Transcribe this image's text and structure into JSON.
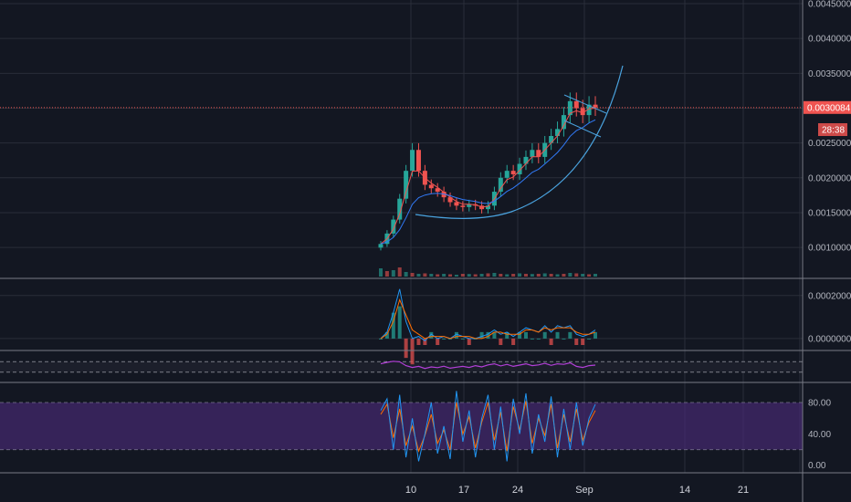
{
  "colors": {
    "background": "#131722",
    "grid": "#2a2e39",
    "separator": "#787b86",
    "axis_text": "#b2b5be",
    "candle_up": "#26a69a",
    "candle_down": "#ef5350",
    "ema_fast": "#ef5350",
    "ema_slow": "#3179f5",
    "trend": "#4aa3df",
    "price_line": "#ef5350",
    "macd": "#2196f3",
    "signal": "#ff6d00",
    "rsi": "#b33fd8",
    "stoch_k": "#2196f3",
    "stoch_d": "#ff6d00",
    "stoch_band": "#4a2a78"
  },
  "time_axis": {
    "labels": [
      "10",
      "17",
      "24",
      "Sep",
      "14",
      "21"
    ]
  },
  "last_price": {
    "label": "0.0030084",
    "timer": "28:38"
  },
  "chart_data": [
    {
      "type": "candlestick",
      "panel": "price",
      "ylim": [
        0.0007,
        0.0045
      ],
      "yticks": [
        "0.0045000",
        "0.0040000",
        "0.0035000",
        "0.0030000",
        "0.0025000",
        "0.0020000",
        "0.0015000",
        "0.0010000"
      ],
      "ytick_values": [
        0.0045,
        0.004,
        0.0035,
        0.003,
        0.0025,
        0.002,
        0.0015,
        0.001
      ],
      "x_labels": [
        "10",
        "17",
        "24",
        "Sep",
        "14",
        "21"
      ],
      "series_close_path": [
        0.00105,
        0.0012,
        0.0014,
        0.0017,
        0.0021,
        0.0024,
        0.0021,
        0.0019,
        0.00185,
        0.0018,
        0.00172,
        0.00165,
        0.0016,
        0.00158,
        0.00162,
        0.0016,
        0.00155,
        0.0016,
        0.0018,
        0.002,
        0.0021,
        0.00205,
        0.0022,
        0.0023,
        0.0024,
        0.0023,
        0.0025,
        0.0026,
        0.0027,
        0.0029,
        0.0031,
        0.003,
        0.0029,
        0.00305,
        0.0030084
      ],
      "volume_path": [
        0.9,
        0.6,
        0.7,
        1.0,
        0.5,
        0.4,
        0.3,
        0.35,
        0.3,
        0.25,
        0.3,
        0.25,
        0.2,
        0.3,
        0.28,
        0.25,
        0.3,
        0.35,
        0.4,
        0.3,
        0.25,
        0.3,
        0.35,
        0.3,
        0.28,
        0.3,
        0.35,
        0.3,
        0.25,
        0.3,
        0.4,
        0.35,
        0.3,
        0.25,
        0.3
      ],
      "current_price": 0.0030084
    },
    {
      "type": "line",
      "panel": "macd",
      "ylim": [
        -3e-05,
        0.00025
      ],
      "yticks": [
        "0.0002000",
        "0.0000000"
      ],
      "ytick_values": [
        0.0002,
        0.0
      ],
      "series": [
        {
          "values": [
            0.0,
            3e-05,
            0.00012,
            0.00023,
            8e-05,
            0.0,
            1e-05,
            -1e-05,
            2e-05,
            0.0,
            1e-05,
            0.0,
            2e-05,
            1e-05,
            0.0,
            0.0,
            1e-05,
            2e-05,
            4e-05,
            2e-05,
            3e-05,
            1e-05,
            3e-05,
            5e-05,
            4e-05,
            3e-05,
            6e-05,
            3e-05,
            6e-05,
            5e-05,
            6e-05,
            2e-05,
            1e-05,
            2e-05,
            4e-05
          ]
        },
        {
          "values": [
            0.0,
            2e-05,
            8e-05,
            0.00018,
            0.00011,
            4e-05,
            2e-05,
            0.0,
            1e-05,
            1e-05,
            1e-05,
            0.0,
            1e-05,
            1e-05,
            1e-05,
            0.0,
            0.0,
            1e-05,
            3e-05,
            3e-05,
            2e-05,
            2e-05,
            2e-05,
            4e-05,
            4e-05,
            3e-05,
            5e-05,
            4e-05,
            5e-05,
            5e-05,
            5e-05,
            3e-05,
            2e-05,
            2e-05,
            3e-05
          ]
        }
      ]
    },
    {
      "type": "line",
      "panel": "rsi",
      "ylim": [
        0,
        100
      ],
      "band": [
        30,
        70
      ],
      "series": [
        {
          "values": [
            62,
            68,
            72,
            70,
            55,
            48,
            52,
            44,
            50,
            47,
            53,
            45,
            49,
            52,
            48,
            55,
            50,
            58,
            62,
            54,
            60,
            52,
            57,
            62,
            55,
            58,
            64,
            56,
            62,
            60,
            66,
            52,
            48,
            55,
            57
          ]
        }
      ]
    },
    {
      "type": "line",
      "panel": "stoch",
      "ylim": [
        -5,
        100
      ],
      "yticks": [
        "80.00",
        "40.00",
        "0.00"
      ],
      "ytick_values": [
        80,
        40,
        0
      ],
      "band": [
        20,
        80
      ],
      "series": [
        {
          "values": [
            70,
            85,
            20,
            90,
            10,
            60,
            5,
            40,
            80,
            15,
            50,
            8,
            95,
            30,
            70,
            10,
            60,
            90,
            20,
            75,
            5,
            85,
            40,
            92,
            15,
            65,
            30,
            88,
            10,
            72,
            20,
            80,
            25,
            60,
            78
          ]
        },
        {
          "values": [
            65,
            78,
            35,
            72,
            25,
            50,
            18,
            38,
            65,
            28,
            45,
            20,
            80,
            40,
            62,
            22,
            55,
            80,
            32,
            68,
            18,
            75,
            45,
            82,
            28,
            60,
            38,
            78,
            22,
            65,
            30,
            72,
            32,
            55,
            70
          ]
        }
      ]
    }
  ]
}
